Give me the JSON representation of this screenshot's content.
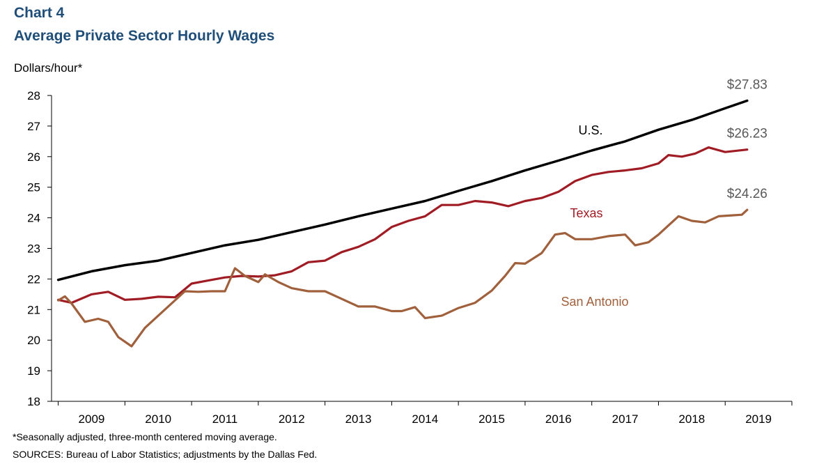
{
  "header": {
    "chart_label": "Chart 4",
    "title": "Average Private Sector Hourly Wages"
  },
  "footer": {
    "footnote": "*Seasonally adjusted, three-month centered moving average.",
    "sources": "SOURCES:  Bureau of Labor Statistics; adjustments  by the Dallas Fed."
  },
  "chart_data": {
    "type": "line",
    "title": "Average Private Sector Hourly Wages",
    "ylabel": "Dollars/hour*",
    "xlabel": "",
    "ylim": [
      18,
      28
    ],
    "yticks": [
      18,
      19,
      20,
      21,
      22,
      23,
      24,
      25,
      26,
      27,
      28
    ],
    "x_tick_labels": [
      "2009",
      "2010",
      "2011",
      "2012",
      "2013",
      "2014",
      "2015",
      "2016",
      "2017",
      "2018",
      "2019"
    ],
    "x_range": [
      2008.9,
      2020.0
    ],
    "grid": false,
    "legend": "inline labels",
    "colors": {
      "us": "#000000",
      "texas": "#a01c24",
      "san_antonio": "#a0603c"
    },
    "series": [
      {
        "name": "U.S.",
        "color": "#000000",
        "end_label": "$27.83",
        "x": [
          2009.0,
          2009.5,
          2010.0,
          2010.5,
          2011.0,
          2011.5,
          2012.0,
          2012.5,
          2013.0,
          2013.5,
          2014.0,
          2014.5,
          2015.0,
          2015.5,
          2016.0,
          2016.5,
          2017.0,
          2017.5,
          2018.0,
          2018.5,
          2019.0,
          2019.33
        ],
        "values": [
          21.97,
          22.25,
          22.45,
          22.6,
          22.85,
          23.1,
          23.28,
          23.53,
          23.78,
          24.05,
          24.3,
          24.55,
          24.88,
          25.2,
          25.55,
          25.87,
          26.2,
          26.5,
          26.88,
          27.2,
          27.58,
          27.83
        ]
      },
      {
        "name": "Texas",
        "color": "#a01c24",
        "end_label": "$26.23",
        "x": [
          2009.0,
          2009.2,
          2009.5,
          2009.75,
          2010.0,
          2010.25,
          2010.5,
          2010.75,
          2011.0,
          2011.25,
          2011.5,
          2011.75,
          2012.0,
          2012.25,
          2012.5,
          2012.75,
          2013.0,
          2013.25,
          2013.5,
          2013.75,
          2014.0,
          2014.25,
          2014.5,
          2014.75,
          2015.0,
          2015.25,
          2015.5,
          2015.75,
          2016.0,
          2016.25,
          2016.5,
          2016.75,
          2017.0,
          2017.25,
          2017.5,
          2017.75,
          2018.0,
          2018.15,
          2018.35,
          2018.55,
          2018.75,
          2019.0,
          2019.33
        ],
        "values": [
          21.32,
          21.22,
          21.5,
          21.58,
          21.32,
          21.35,
          21.42,
          21.4,
          21.85,
          21.95,
          22.05,
          22.1,
          22.08,
          22.12,
          22.25,
          22.55,
          22.6,
          22.88,
          23.05,
          23.3,
          23.7,
          23.9,
          24.05,
          24.42,
          24.42,
          24.55,
          24.5,
          24.38,
          24.55,
          24.65,
          24.85,
          25.2,
          25.4,
          25.5,
          25.55,
          25.62,
          25.78,
          26.05,
          26.0,
          26.1,
          26.3,
          26.15,
          26.23
        ]
      },
      {
        "name": "San Antonio",
        "color": "#a0603c",
        "end_label": "$24.26",
        "x": [
          2009.0,
          2009.1,
          2009.2,
          2009.4,
          2009.6,
          2009.75,
          2009.9,
          2010.1,
          2010.3,
          2010.5,
          2010.7,
          2010.9,
          2011.1,
          2011.3,
          2011.5,
          2011.65,
          2011.8,
          2012.0,
          2012.1,
          2012.3,
          2012.5,
          2012.75,
          2013.0,
          2013.25,
          2013.5,
          2013.75,
          2014.0,
          2014.15,
          2014.35,
          2014.5,
          2014.75,
          2015.0,
          2015.25,
          2015.5,
          2015.7,
          2015.85,
          2016.0,
          2016.25,
          2016.45,
          2016.6,
          2016.75,
          2017.0,
          2017.25,
          2017.5,
          2017.65,
          2017.85,
          2018.0,
          2018.15,
          2018.3,
          2018.5,
          2018.7,
          2018.9,
          2019.1,
          2019.25,
          2019.33
        ],
        "values": [
          21.3,
          21.43,
          21.2,
          20.6,
          20.7,
          20.6,
          20.1,
          19.8,
          20.4,
          20.8,
          21.2,
          21.6,
          21.58,
          21.6,
          21.6,
          22.35,
          22.1,
          21.9,
          22.15,
          21.9,
          21.7,
          21.6,
          21.6,
          21.35,
          21.1,
          21.1,
          20.95,
          20.95,
          21.08,
          20.72,
          20.8,
          21.05,
          21.22,
          21.62,
          22.1,
          22.52,
          22.5,
          22.85,
          23.45,
          23.5,
          23.3,
          23.3,
          23.4,
          23.45,
          23.1,
          23.2,
          23.45,
          23.75,
          24.05,
          23.9,
          23.85,
          24.05,
          24.08,
          24.1,
          24.26
        ]
      }
    ]
  }
}
